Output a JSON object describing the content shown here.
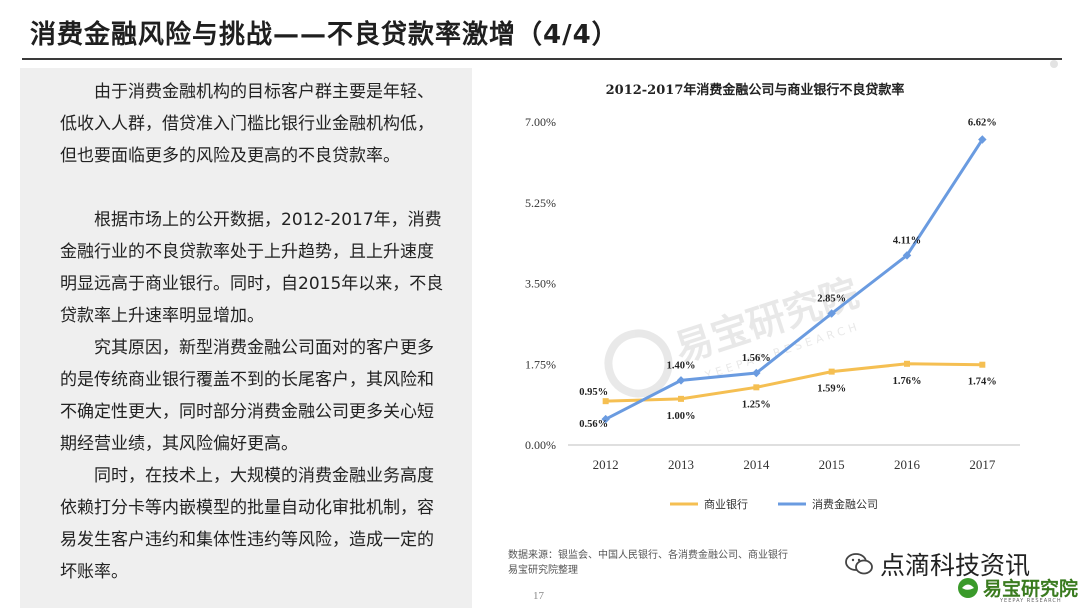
{
  "header": {
    "title": "消费金融风险与挑战——不良贷款率激增（4/4）"
  },
  "body_text": {
    "paragraphs": [
      "由于消费金融机构的目标客户群主要是年轻、低收入人群，借贷准入门槛比银行业金融机构低，但也要面临更多的风险及更高的不良贷款率。",
      "根据市场上的公开数据，2012-2017年，消费金融行业的不良贷款率处于上升趋势，且上升速度明显远高于商业银行。同时，自2015年以来，不良贷款率上升速率明显增加。",
      "究其原因，新型消费金融公司面对的客户更多的是传统商业银行覆盖不到的长尾客户，其风险和不确定性更大，同时部分消费金融公司更多关心短期经营业绩，其风险偏好更高。",
      "同时，在技术上，大规模的消费金融业务高度依赖打分卡等内嵌模型的批量自动化审批机制，容易发生客户违约和集体性违约等风险，造成一定的坏账率。"
    ]
  },
  "chart_data": {
    "type": "line",
    "title": "2012-2017年消费金融公司与商业银行不良贷款率",
    "categories": [
      "2012",
      "2013",
      "2014",
      "2015",
      "2016",
      "2017"
    ],
    "ylim": [
      0,
      7
    ],
    "yticks": [
      "0.00%",
      "1.75%",
      "3.50%",
      "5.25%",
      "7.00%"
    ],
    "ytick_values": [
      0,
      1.75,
      3.5,
      5.25,
      7
    ],
    "grid": false,
    "legend": "bottom",
    "series": [
      {
        "name": "商业银行",
        "color": "#f5bf52",
        "values": [
          0.95,
          1.0,
          1.25,
          1.59,
          1.76,
          1.74
        ],
        "labels": [
          "0.95%",
          "1.00%",
          "1.25%",
          "1.59%",
          "1.76%",
          "1.74%"
        ]
      },
      {
        "name": "消费金融公司",
        "color": "#6a9be0",
        "values": [
          0.56,
          1.4,
          1.56,
          2.85,
          4.11,
          6.62
        ],
        "labels": [
          "0.56%",
          "1.40%",
          "1.56%",
          "2.85%",
          "4.11%",
          "6.62%"
        ]
      }
    ]
  },
  "footer": {
    "source_line1": "数据来源：银监会、中国人民银行、各消费金融公司、商业银行",
    "source_line2": "易宝研究院整理",
    "page_number": "17",
    "wechat_name": "点滴科技资讯",
    "brand_name": "易宝研究院",
    "brand_sub": "YEEPAY RESEARCH"
  },
  "watermark": {
    "text": "易宝研究院",
    "sub": "YEEPAY RESEARCH"
  }
}
